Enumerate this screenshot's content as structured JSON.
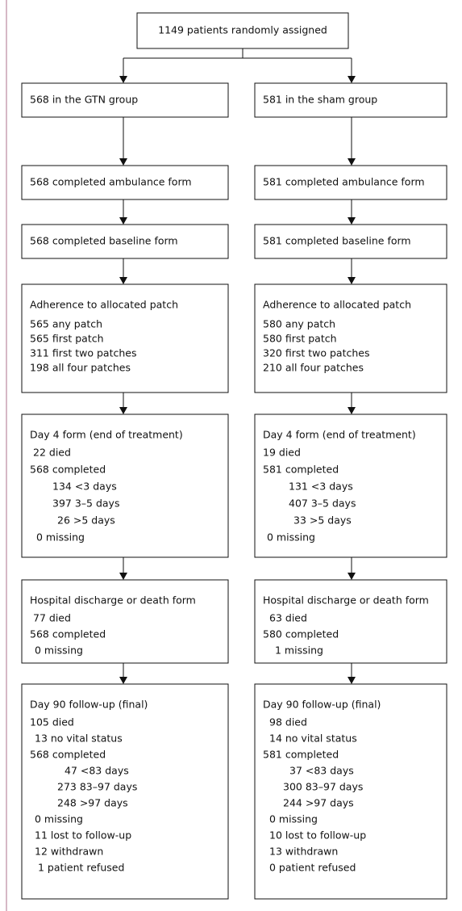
{
  "top": "1149 patients randomly assigned",
  "arms": [
    {
      "boxes": [
        {
          "lines": [
            "568 in the GTN group"
          ]
        },
        {
          "lines": [
            "568 completed ambulance form"
          ]
        },
        {
          "lines": [
            "568 completed baseline form"
          ]
        },
        {
          "lines": [
            "Adherence to allocated patch",
            "565 any patch",
            "565 first patch",
            "311 first two patches",
            "198 all four patches"
          ]
        },
        {
          "lines": [
            "Day 4 form (end of treatment)",
            "22 died",
            "568 completed",
            "134 <3 days",
            "397 3–5 days",
            "26 >5 days",
            "0 missing"
          ]
        },
        {
          "lines": [
            "Hospital discharge or death form",
            "77 died",
            "568 completed",
            "0 missing"
          ]
        },
        {
          "lines": [
            "Day 90 follow-up (final)",
            "105 died",
            "13 no vital status",
            "568 completed",
            "47 <83 days",
            "273 83–97 days",
            "248 >97 days",
            "0 missing",
            "11 lost to follow-up",
            "12 withdrawn",
            "1 patient refused"
          ]
        }
      ]
    },
    {
      "boxes": [
        {
          "lines": [
            "581 in the sham group"
          ]
        },
        {
          "lines": [
            "581 completed ambulance form"
          ]
        },
        {
          "lines": [
            "581 completed baseline form"
          ]
        },
        {
          "lines": [
            "Adherence to allocated patch",
            "580 any patch",
            "580 first patch",
            "320 first two patches",
            "210 all four patches"
          ]
        },
        {
          "lines": [
            "Day 4 form (end of treatment)",
            "19 died",
            "581 completed",
            "131 <3 days",
            "407 3–5 days",
            "33 >5 days",
            "0 missing"
          ]
        },
        {
          "lines": [
            "Hospital discharge or death form",
            "63 died",
            "580 completed",
            "1 missing"
          ]
        },
        {
          "lines": [
            "Day 90 follow-up (final)",
            "98 died",
            "14 no vital status",
            "581 completed",
            "37 <83 days",
            "300 83–97 days",
            "244 >97 days",
            "0 missing",
            "10 lost to follow-up",
            "13 withdrawn",
            "0 patient refused"
          ]
        }
      ]
    }
  ]
}
